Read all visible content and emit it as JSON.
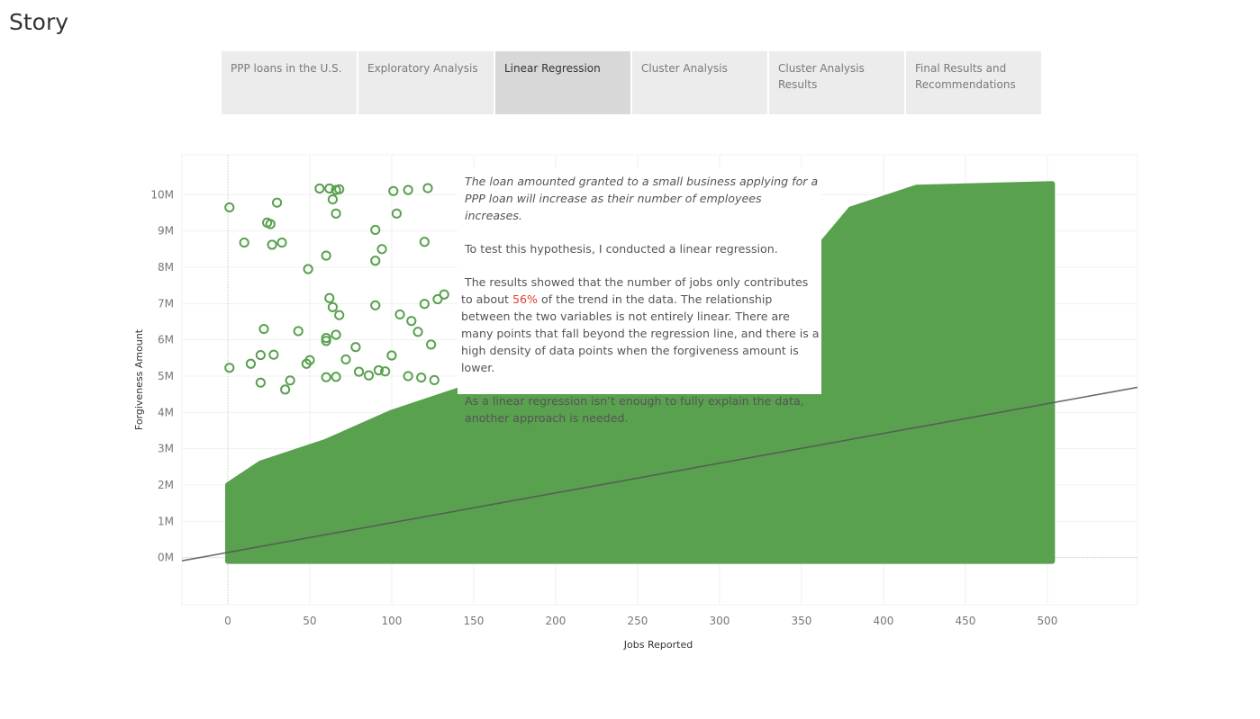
{
  "app": {
    "title": "Story"
  },
  "tabs": [
    {
      "label": "PPP loans in the U.S.",
      "active": false
    },
    {
      "label": "Exploratory Analysis",
      "active": false
    },
    {
      "label": "Linear Regression",
      "active": true
    },
    {
      "label": "Cluster Analysis",
      "active": false
    },
    {
      "label": "Cluster Analysis Results",
      "active": false
    },
    {
      "label": "Final Results and Recommendations",
      "active": false
    }
  ],
  "callout": {
    "hypothesis": "The loan amounted granted to a small business applying for a PPP loan will increase as their number of employees increases.",
    "test": "To test this hypothesis, I conducted a linear regression.",
    "results_pre": "The results showed that the number of jobs only contributes to about",
    "results_highlight": "56%",
    "results_post": "of the trend in the data. The relationship between the two variables is not entirely linear. There are many points that fall beyond the regression line, and there is a high density of data points when the forgiveness amount is lower.",
    "conclusion": "As a linear regression isn’t enough to fully explain the data, another approach is needed."
  },
  "colors": {
    "marker": "#59a14f",
    "trend_line": "#555555",
    "highlight": "#e03c31",
    "active_tab": "#d8d8d8",
    "inactive_tab": "#ececec"
  },
  "chart_data": {
    "type": "scatter",
    "xlabel": "Jobs Reported",
    "ylabel": "Forgiveness Amount",
    "xlim": [
      -28,
      555
    ],
    "ylim": [
      -1300000,
      11100000
    ],
    "x_ticks": [
      0,
      50,
      100,
      150,
      200,
      250,
      300,
      350,
      400,
      450,
      500
    ],
    "x_tick_labels": [
      "0",
      "50",
      "100",
      "150",
      "200",
      "250",
      "300",
      "350",
      "400",
      "450",
      "500"
    ],
    "y_ticks": [
      0,
      1000000,
      2000000,
      3000000,
      4000000,
      5000000,
      6000000,
      7000000,
      8000000,
      9000000,
      10000000
    ],
    "y_tick_labels": [
      "0M",
      "1M",
      "2M",
      "3M",
      "4M",
      "5M",
      "6M",
      "7M",
      "8M",
      "9M",
      "10M"
    ],
    "grid": true,
    "marker": "hollow-circle",
    "trend_line": {
      "slope": 8200,
      "intercept": 140000,
      "r_squared": 0.56
    },
    "series": [
      {
        "points": [
          [
            1,
            9650000
          ],
          [
            10,
            8680000
          ],
          [
            24,
            9230000
          ],
          [
            26,
            9190000
          ],
          [
            30,
            9780000
          ],
          [
            27,
            8620000
          ],
          [
            33,
            8680000
          ],
          [
            56,
            10170000
          ],
          [
            62,
            10170000
          ],
          [
            66,
            10130000
          ],
          [
            64,
            9870000
          ],
          [
            66,
            9480000
          ],
          [
            68,
            10150000
          ],
          [
            101,
            10100000
          ],
          [
            110,
            10130000
          ],
          [
            122,
            10180000
          ],
          [
            103,
            9480000
          ],
          [
            90,
            9030000
          ],
          [
            94,
            8500000
          ],
          [
            90,
            8180000
          ],
          [
            49,
            7950000
          ],
          [
            60,
            8320000
          ],
          [
            120,
            8700000
          ],
          [
            62,
            7150000
          ],
          [
            64,
            6900000
          ],
          [
            68,
            6680000
          ],
          [
            90,
            6950000
          ],
          [
            105,
            6700000
          ],
          [
            116,
            6220000
          ],
          [
            112,
            6520000
          ],
          [
            22,
            6300000
          ],
          [
            43,
            6240000
          ],
          [
            66,
            6140000
          ],
          [
            60,
            6050000
          ],
          [
            60,
            5970000
          ],
          [
            78,
            5800000
          ],
          [
            20,
            5580000
          ],
          [
            28,
            5590000
          ],
          [
            14,
            5340000
          ],
          [
            1,
            5230000
          ],
          [
            50,
            5440000
          ],
          [
            48,
            5340000
          ],
          [
            72,
            5460000
          ],
          [
            100,
            5570000
          ],
          [
            96,
            5130000
          ],
          [
            110,
            5000000
          ],
          [
            124,
            5870000
          ],
          [
            132,
            7250000
          ],
          [
            128,
            7120000
          ],
          [
            120,
            6990000
          ],
          [
            20,
            4820000
          ],
          [
            35,
            4630000
          ],
          [
            38,
            4880000
          ],
          [
            60,
            4970000
          ],
          [
            66,
            4980000
          ],
          [
            80,
            5120000
          ],
          [
            86,
            5020000
          ],
          [
            92,
            5160000
          ],
          [
            118,
            4960000
          ],
          [
            126,
            4890000
          ]
        ]
      }
    ]
  }
}
